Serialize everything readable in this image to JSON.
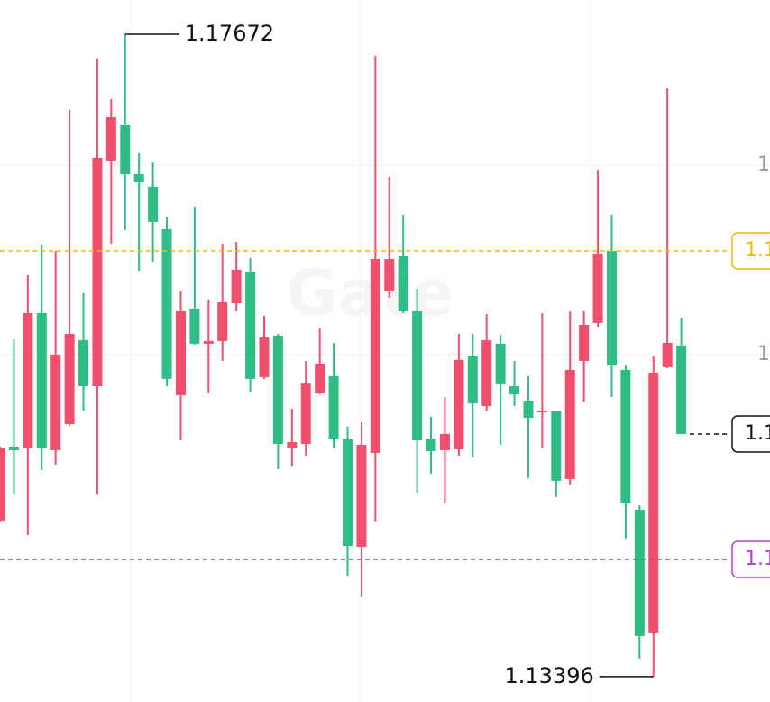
{
  "chart_data": {
    "type": "candlestick",
    "watermark": "Gate",
    "up_color": "#f0506e",
    "down_color": "#2ebd85",
    "ylim": [
      1.13227,
      1.179
    ],
    "yticks": [
      {
        "value": 1.168,
        "label": "1"
      },
      {
        "value": 1.1554,
        "label": "1"
      }
    ],
    "grid": true,
    "open": [
      1.14435,
      1.14927,
      1.14915,
      1.15816,
      1.14903,
      1.15077,
      1.15636,
      1.15329,
      1.16831,
      1.17071,
      1.16741,
      1.16657,
      1.16375,
      1.15269,
      1.15846,
      1.15612,
      1.1563,
      1.15882,
      1.16092,
      1.1539,
      1.15666,
      1.14921,
      1.14945,
      1.15281,
      1.15396,
      1.14975,
      1.1426,
      1.14885,
      1.1596,
      1.16194,
      1.15828,
      1.14981,
      1.14903,
      1.14909,
      1.15528,
      1.15197,
      1.15612,
      1.15329,
      1.15233,
      1.15155,
      1.15161,
      1.14711,
      1.15498,
      1.1575,
      1.1623,
      1.15438,
      1.14507,
      1.1369,
      1.15456,
      1.156
    ],
    "high": [
      1.14927,
      1.15642,
      1.16068,
      1.16272,
      1.1623,
      1.17167,
      1.15948,
      1.1751,
      1.17239,
      1.17672,
      1.16879,
      1.16819,
      1.16459,
      1.1596,
      1.16525,
      1.15906,
      1.16278,
      1.1629,
      1.16182,
      1.15798,
      1.15678,
      1.15179,
      1.15498,
      1.15714,
      1.15618,
      1.15059,
      1.15089,
      1.17528,
      1.16723,
      1.16471,
      1.15978,
      1.15125,
      1.15257,
      1.15678,
      1.15678,
      1.1581,
      1.15672,
      1.15498,
      1.15396,
      1.15816,
      1.15161,
      1.15828,
      1.15828,
      1.16771,
      1.16471,
      1.15468,
      1.14537,
      1.15528,
      1.17311,
      1.15786
    ],
    "low": [
      1.14429,
      1.14609,
      1.14338,
      1.14771,
      1.14807,
      1.15065,
      1.15167,
      1.14609,
      1.16278,
      1.16369,
      1.16098,
      1.16158,
      1.15329,
      1.14969,
      1.15606,
      1.15287,
      1.15498,
      1.15828,
      1.15293,
      1.15378,
      1.14777,
      1.14795,
      1.14867,
      1.15275,
      1.14915,
      1.14068,
      1.13924,
      1.14429,
      1.15918,
      1.15816,
      1.14621,
      1.14747,
      1.14549,
      1.14867,
      1.14855,
      1.15167,
      1.14939,
      1.15197,
      1.14717,
      1.14915,
      1.14591,
      1.14675,
      1.15227,
      1.15726,
      1.15257,
      1.14314,
      1.13516,
      1.13396,
      1.1545,
      1.15011
    ],
    "close": [
      1.14915,
      1.14903,
      1.15816,
      1.14915,
      1.1554,
      1.15678,
      1.15329,
      1.16849,
      1.17119,
      1.16741,
      1.16687,
      1.16423,
      1.15378,
      1.15828,
      1.15612,
      1.1563,
      1.15888,
      1.16104,
      1.15378,
      1.15654,
      1.14945,
      1.14957,
      1.15347,
      1.1548,
      1.14981,
      1.14266,
      1.14939,
      1.16176,
      1.16176,
      1.15828,
      1.14969,
      1.14897,
      1.15011,
      1.15504,
      1.15215,
      1.15636,
      1.15341,
      1.15275,
      1.15119,
      1.15167,
      1.14699,
      1.15438,
      1.15738,
      1.16212,
      1.15468,
      1.14549,
      1.13666,
      1.1542,
      1.15618,
      1.15011
    ],
    "price_lines": [
      {
        "value": 1.1623,
        "color": "#f0b90b",
        "style": "dashed"
      },
      {
        "value": 1.14176,
        "color": "#b03fd6",
        "style": "dashed"
      },
      {
        "value": 1.15011,
        "color": "#111111",
        "style": "dashed"
      }
    ]
  }
}
